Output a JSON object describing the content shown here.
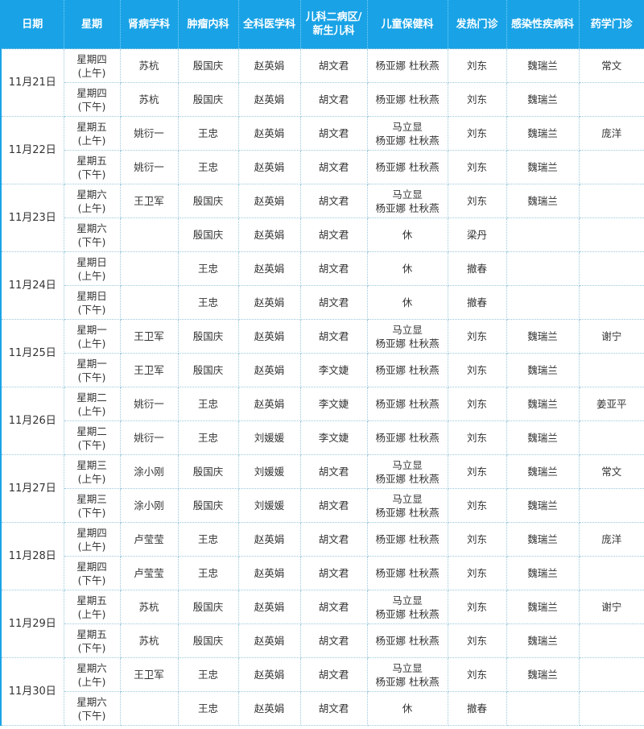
{
  "header": [
    "日期",
    "星期",
    "肾病学科",
    "肿瘤内科",
    "全科医学科",
    "儿科二病区/\n新生儿科",
    "儿童保健科",
    "发热门诊",
    "感染性疾病科",
    "药学门诊"
  ],
  "colors": {
    "header_bg": "#19a3e6",
    "border": "#9cc9dc"
  },
  "days": [
    {
      "date": "11月21日",
      "rows": [
        {
          "week": "星期四\n(上午)",
          "cells": [
            "苏杭",
            "殷国庆",
            "赵英娟",
            "胡文君",
            "杨亚娜 杜秋燕",
            "刘东",
            "魏瑞兰",
            "常文"
          ]
        },
        {
          "week": "星期四\n(下午)",
          "cells": [
            "苏杭",
            "殷国庆",
            "赵英娟",
            "胡文君",
            "杨亚娜 杜秋燕",
            "刘东",
            "魏瑞兰",
            ""
          ]
        }
      ]
    },
    {
      "date": "11月22日",
      "rows": [
        {
          "week": "星期五\n(上午)",
          "cells": [
            "姚衍一",
            "王忠",
            "赵英娟",
            "胡文君",
            "马立显\n杨亚娜 杜秋燕",
            "刘东",
            "魏瑞兰",
            "庞洋"
          ]
        },
        {
          "week": "星期五\n(下午)",
          "cells": [
            "姚衍一",
            "王忠",
            "赵英娟",
            "胡文君",
            "杨亚娜 杜秋燕",
            "刘东",
            "魏瑞兰",
            ""
          ]
        }
      ]
    },
    {
      "date": "11月23日",
      "rows": [
        {
          "week": "星期六\n(上午)",
          "cells": [
            "王卫军",
            "殷国庆",
            "赵英娟",
            "胡文君",
            "马立显\n杨亚娜 杜秋燕",
            "刘东",
            "魏瑞兰",
            ""
          ]
        },
        {
          "week": "星期六\n(下午)",
          "cells": [
            "",
            "殷国庆",
            "赵英娟",
            "胡文君",
            "休",
            "梁丹",
            "",
            ""
          ]
        }
      ]
    },
    {
      "date": "11月24日",
      "rows": [
        {
          "week": "星期日\n(上午)",
          "cells": [
            "",
            "王忠",
            "赵英娟",
            "胡文君",
            "休",
            "撤春",
            "",
            ""
          ]
        },
        {
          "week": "星期日\n(下午)",
          "cells": [
            "",
            "王忠",
            "赵英娟",
            "胡文君",
            "休",
            "撤春",
            "",
            ""
          ]
        }
      ]
    },
    {
      "date": "11月25日",
      "rows": [
        {
          "week": "星期一\n(上午)",
          "cells": [
            "王卫军",
            "殷国庆",
            "赵英娟",
            "胡文君",
            "马立显\n杨亚娜 杜秋燕",
            "刘东",
            "魏瑞兰",
            "谢宁"
          ]
        },
        {
          "week": "星期一\n(下午)",
          "cells": [
            "王卫军",
            "殷国庆",
            "赵英娟",
            "李文婕",
            "杨亚娜 杜秋燕",
            "刘东",
            "魏瑞兰",
            ""
          ]
        }
      ]
    },
    {
      "date": "11月26日",
      "rows": [
        {
          "week": "星期二\n(上午)",
          "cells": [
            "姚衍一",
            "王忠",
            "赵英娟",
            "李文婕",
            "杨亚娜 杜秋燕",
            "刘东",
            "魏瑞兰",
            "姜亚平"
          ]
        },
        {
          "week": "星期二\n(下午)",
          "cells": [
            "姚衍一",
            "王忠",
            "刘媛媛",
            "李文婕",
            "杨亚娜 杜秋燕",
            "刘东",
            "魏瑞兰",
            ""
          ]
        }
      ]
    },
    {
      "date": "11月27日",
      "rows": [
        {
          "week": "星期三\n(上午)",
          "cells": [
            "涂小刚",
            "殷国庆",
            "刘媛媛",
            "胡文君",
            "马立显\n杨亚娜 杜秋燕",
            "刘东",
            "魏瑞兰",
            "常文"
          ]
        },
        {
          "week": "星期三\n(下午)",
          "cells": [
            "涂小刚",
            "殷国庆",
            "刘媛媛",
            "胡文君",
            "马立显\n杨亚娜 杜秋燕",
            "刘东",
            "魏瑞兰",
            ""
          ]
        }
      ]
    },
    {
      "date": "11月28日",
      "rows": [
        {
          "week": "星期四\n(上午)",
          "cells": [
            "卢莹莹",
            "王忠",
            "赵英娟",
            "胡文君",
            "杨亚娜 杜秋燕",
            "刘东",
            "魏瑞兰",
            "庞洋"
          ]
        },
        {
          "week": "星期四\n(下午)",
          "cells": [
            "卢莹莹",
            "王忠",
            "赵英娟",
            "胡文君",
            "杨亚娜 杜秋燕",
            "刘东",
            "魏瑞兰",
            ""
          ]
        }
      ]
    },
    {
      "date": "11月29日",
      "rows": [
        {
          "week": "星期五\n(上午)",
          "cells": [
            "苏杭",
            "殷国庆",
            "赵英娟",
            "胡文君",
            "马立显\n杨亚娜 杜秋燕",
            "刘东",
            "魏瑞兰",
            "谢宁"
          ]
        },
        {
          "week": "星期五\n(下午)",
          "cells": [
            "苏杭",
            "殷国庆",
            "赵英娟",
            "胡文君",
            "杨亚娜 杜秋燕",
            "刘东",
            "魏瑞兰",
            ""
          ]
        }
      ]
    },
    {
      "date": "11月30日",
      "rows": [
        {
          "week": "星期六\n(上午)",
          "cells": [
            "王卫军",
            "王忠",
            "赵英娟",
            "胡文君",
            "马立显\n杨亚娜 杜秋燕",
            "刘东",
            "魏瑞兰",
            ""
          ]
        },
        {
          "week": "星期六\n(下午)",
          "cells": [
            "",
            "王忠",
            "赵英娟",
            "胡文君",
            "休",
            "撤春",
            "",
            ""
          ]
        }
      ]
    }
  ]
}
